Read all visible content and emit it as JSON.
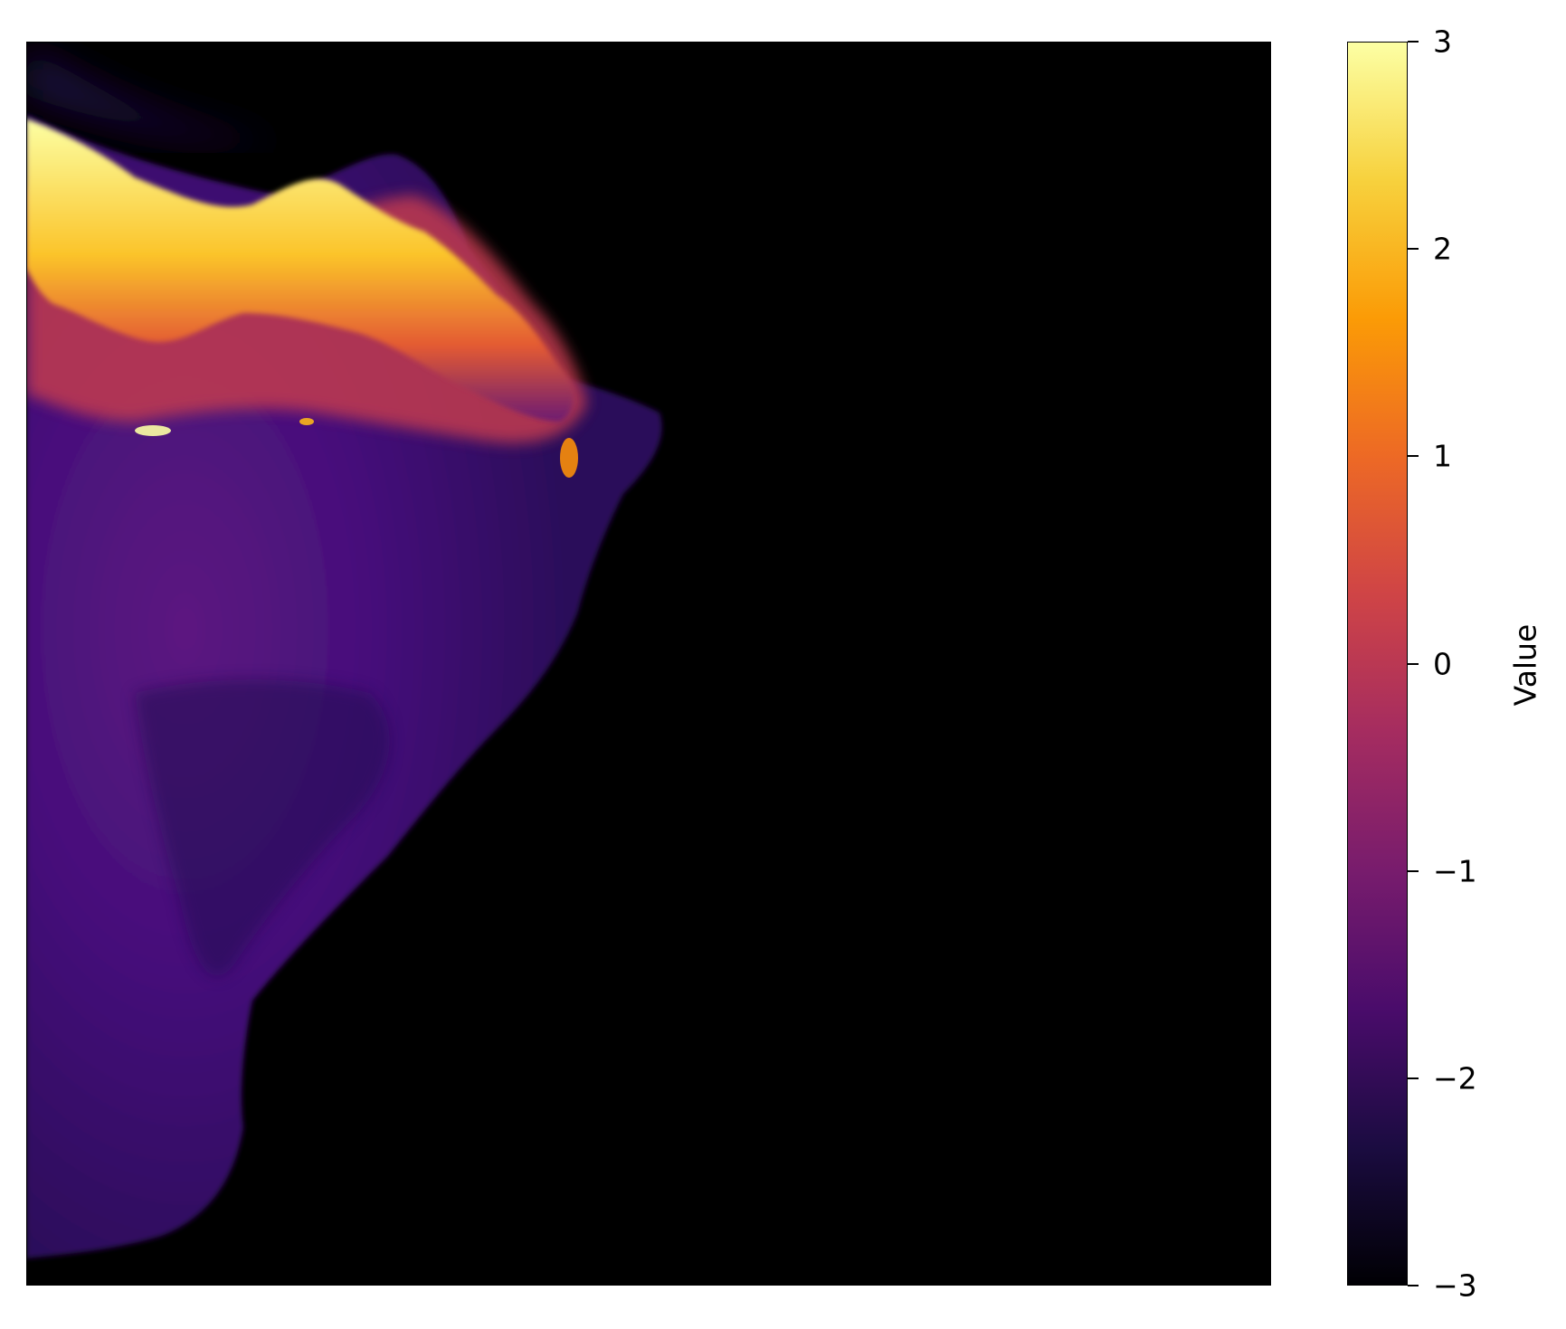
{
  "colorbar": {
    "label": "Value",
    "colormap": "inferno",
    "vmin": -3,
    "vmax": 3,
    "ticks": [
      {
        "value": 3,
        "label": "3"
      },
      {
        "value": 2,
        "label": "2"
      },
      {
        "value": 1,
        "label": "1"
      },
      {
        "value": 0,
        "label": "0"
      },
      {
        "value": -1,
        "label": "−1"
      },
      {
        "value": -2,
        "label": "−2"
      },
      {
        "value": -3,
        "label": "−3"
      }
    ],
    "stops": [
      "#000004",
      "#1b0c41",
      "#4a0c6b",
      "#781c6d",
      "#a52c60",
      "#cf4446",
      "#ed6925",
      "#fb9b06",
      "#f7d13d",
      "#fcffa4"
    ]
  },
  "map": {
    "background_value": -3,
    "colors": {
      "deep": "#000004",
      "low": "#3b0f70",
      "mid": "#56137d",
      "high": "#f98e09",
      "peak": "#fcffa4"
    }
  }
}
